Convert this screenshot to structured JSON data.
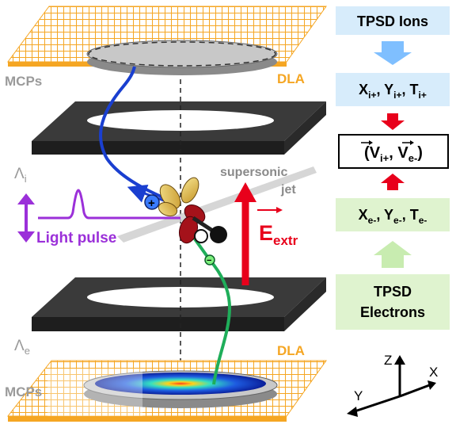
{
  "labels": {
    "mcps_top": "MCPs",
    "dla_top": "DLA",
    "lambda_i": "Λ",
    "lambda_i_sub": "i",
    "lambda_e": "Λ",
    "lambda_e_sub": "e",
    "mcps_bottom": "MCPs",
    "dla_bottom": "DLA",
    "supersonic": "supersonic",
    "jet": "jet",
    "light_pulse": "Light pulse",
    "e_field": "E",
    "e_field_sub": "extr",
    "plus_sign": "+",
    "minus_sign": "−"
  },
  "flow": {
    "ions_title": "TPSD Ions",
    "ion_coords": {
      "x": "X",
      "x_sub": "i+",
      "y": "Y",
      "y_sub": "i+",
      "t": "T",
      "t_sub": "i+"
    },
    "velocity": {
      "open": "(",
      "v1": "V",
      "v1_sub": "i+",
      "sep": ",",
      "v2": "V",
      "v2_sub": "e-",
      "close": ")"
    },
    "electron_coords": {
      "x": "X",
      "x_sub": "e-",
      "y": "Y",
      "y_sub": "e-",
      "t": "T",
      "t_sub": "e-"
    },
    "electrons_title_1": "TPSD",
    "electrons_title_2": "Electrons"
  },
  "axes": {
    "z": "Z",
    "x": "X",
    "y": "Y"
  },
  "colors": {
    "dla_grid": "#f5a623",
    "mcp_disk": "#9a9a9a",
    "plate": "#3a3a3a",
    "ion_path": "#1a3fd0",
    "electron_path": "#1fae5a",
    "light": "#9b30d9",
    "field": "#e8001b",
    "ion_box": "#d7ecfb",
    "electron_box": "#dff3cf"
  }
}
